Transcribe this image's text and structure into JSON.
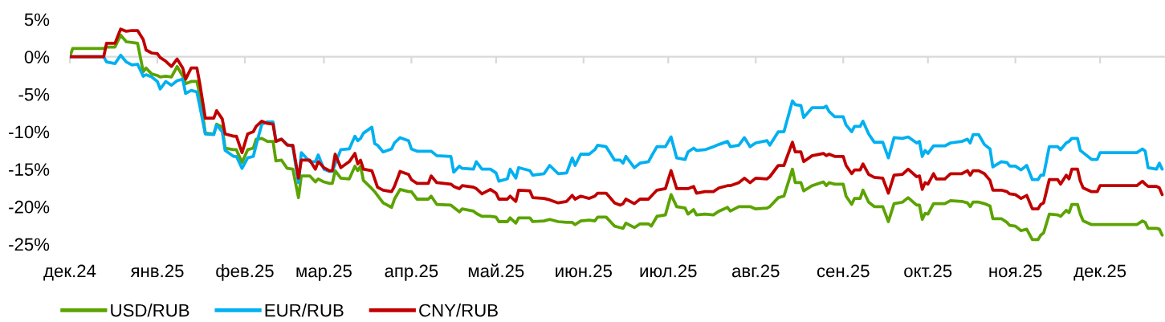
{
  "chart_data": {
    "type": "line",
    "x": [
      "2024-12-01",
      "2024-12-02",
      "2024-12-13",
      "2024-12-14",
      "2024-12-17",
      "2024-12-19",
      "2024-12-21",
      "2024-12-23",
      "2024-12-25",
      "2024-12-27",
      "2024-12-28",
      "2024-12-30",
      "2025-01-01",
      "2025-01-02",
      "2025-01-04",
      "2025-01-06",
      "2025-01-08",
      "2025-01-10",
      "2025-01-11",
      "2025-01-13",
      "2025-01-15",
      "2025-01-16",
      "2025-01-18",
      "2025-01-21",
      "2025-01-22",
      "2025-01-24",
      "2025-01-25",
      "2025-01-28",
      "2025-01-29",
      "2025-01-31",
      "2025-02-02",
      "2025-02-04",
      "2025-02-05",
      "2025-02-07",
      "2025-02-09",
      "2025-02-11",
      "2025-02-12",
      "2025-02-14",
      "2025-02-16",
      "2025-02-18",
      "2025-02-20",
      "2025-02-21",
      "2025-02-24",
      "2025-02-26",
      "2025-02-27",
      "2025-03-01",
      "2025-03-03",
      "2025-03-04",
      "2025-03-05",
      "2025-03-07",
      "2025-03-10",
      "2025-03-12",
      "2025-03-13",
      "2025-03-14",
      "2025-03-15",
      "2025-03-18",
      "2025-03-19",
      "2025-03-20",
      "2025-03-22",
      "2025-03-25",
      "2025-03-26",
      "2025-03-28",
      "2025-03-31",
      "2025-04-01",
      "2025-04-03",
      "2025-04-07",
      "2025-04-08",
      "2025-04-10",
      "2025-04-15",
      "2025-04-16",
      "2025-04-18",
      "2025-04-19",
      "2025-04-23",
      "2025-04-24",
      "2025-04-26",
      "2025-04-29",
      "2025-05-01",
      "2025-05-02",
      "2025-05-05",
      "2025-05-06",
      "2025-05-08",
      "2025-05-09",
      "2025-05-13",
      "2025-05-14",
      "2025-05-18",
      "2025-05-20",
      "2025-05-23",
      "2025-05-26",
      "2025-05-28",
      "2025-05-29",
      "2025-05-31",
      "2025-06-03",
      "2025-06-05",
      "2025-06-06",
      "2025-06-09",
      "2025-06-12",
      "2025-06-14",
      "2025-06-15",
      "2025-06-16",
      "2025-06-19",
      "2025-06-21",
      "2025-06-24",
      "2025-06-25",
      "2025-06-27",
      "2025-06-30",
      "2025-07-02",
      "2025-07-04",
      "2025-07-07",
      "2025-07-08",
      "2025-07-10",
      "2025-07-11",
      "2025-07-14",
      "2025-07-17",
      "2025-07-19",
      "2025-07-22",
      "2025-07-23",
      "2025-07-26",
      "2025-07-28",
      "2025-07-30",
      "2025-08-01",
      "2025-08-05",
      "2025-08-06",
      "2025-08-09",
      "2025-08-11",
      "2025-08-14",
      "2025-08-15",
      "2025-08-17",
      "2025-08-18",
      "2025-08-21",
      "2025-08-25",
      "2025-08-26",
      "2025-08-27",
      "2025-08-29",
      "2025-09-01",
      "2025-09-02",
      "2025-09-04",
      "2025-09-05",
      "2025-09-07",
      "2025-09-08",
      "2025-09-10",
      "2025-09-12",
      "2025-09-15",
      "2025-09-17",
      "2025-09-19",
      "2025-09-22",
      "2025-09-24",
      "2025-09-27",
      "2025-09-28",
      "2025-09-29",
      "2025-09-30",
      "2025-10-01",
      "2025-10-03",
      "2025-10-04",
      "2025-10-07",
      "2025-10-09",
      "2025-10-13",
      "2025-10-15",
      "2025-10-16",
      "2025-10-17",
      "2025-10-19",
      "2025-10-21",
      "2025-10-23",
      "2025-10-24",
      "2025-10-27",
      "2025-10-29",
      "2025-10-30",
      "2025-11-01",
      "2025-11-03",
      "2025-11-05",
      "2025-11-07",
      "2025-11-09",
      "2025-11-10",
      "2025-11-11",
      "2025-11-13",
      "2025-11-16",
      "2025-11-17",
      "2025-11-19",
      "2025-11-20",
      "2025-11-21",
      "2025-11-23",
      "2025-11-24",
      "2025-11-25",
      "2025-11-28",
      "2025-11-30",
      "2025-12-01",
      "2025-12-14",
      "2025-12-16",
      "2025-12-17",
      "2025-12-18",
      "2025-12-21",
      "2025-12-22",
      "2025-12-23"
    ],
    "series": [
      {
        "name": "USD/RUB",
        "color": "#5ba300",
        "values": [
          0,
          1.1,
          1.1,
          1.3,
          1.3,
          2.9,
          2.0,
          1.9,
          1.8,
          -2.0,
          -1.5,
          -2.3,
          -2.5,
          -2.7,
          -2.6,
          -2.7,
          -1.3,
          -2.6,
          -3.6,
          -3.3,
          -3.3,
          -5.0,
          -10.2,
          -10.3,
          -9.0,
          -9.4,
          -12.2,
          -12.4,
          -12.4,
          -14.1,
          -12.4,
          -12.2,
          -11.0,
          -10.9,
          -11.3,
          -11.3,
          -13.9,
          -13.8,
          -14.9,
          -15.0,
          -18.8,
          -15.9,
          -15.9,
          -16.7,
          -16.3,
          -16.7,
          -16.9,
          -16.9,
          -15.2,
          -16.2,
          -16.3,
          -14.6,
          -15.2,
          -14.6,
          -16.5,
          -17.6,
          -18.0,
          -18.5,
          -19.5,
          -20.1,
          -19.0,
          -17.7,
          -18.0,
          -18.0,
          -19.0,
          -19.0,
          -18.6,
          -19.7,
          -19.8,
          -20.1,
          -20.7,
          -20.3,
          -20.6,
          -20.9,
          -21.3,
          -21.3,
          -21.4,
          -22.0,
          -22.0,
          -21.5,
          -22.2,
          -21.5,
          -21.5,
          -22.0,
          -21.9,
          -21.7,
          -22.0,
          -22.1,
          -22.1,
          -22.4,
          -21.9,
          -21.8,
          -21.9,
          -21.4,
          -21.4,
          -22.6,
          -22.8,
          -22.9,
          -22.2,
          -22.8,
          -22.3,
          -22.3,
          -22.6,
          -21.3,
          -21.1,
          -18.4,
          -20.0,
          -20.2,
          -21.0,
          -20.4,
          -21.1,
          -21.0,
          -21.1,
          -20.6,
          -20.1,
          -20.6,
          -20.0,
          -20.0,
          -20.0,
          -20.3,
          -20.2,
          -20.0,
          -18.8,
          -18.6,
          -15.0,
          -16.8,
          -16.8,
          -17.9,
          -17.2,
          -16.7,
          -17.2,
          -16.8,
          -17.0,
          -17.0,
          -18.6,
          -19.7,
          -18.9,
          -18.9,
          -17.8,
          -19.4,
          -20.0,
          -20.0,
          -22.0,
          -19.6,
          -19.4,
          -18.8,
          -19.8,
          -19.8,
          -21.7,
          -20.9,
          -21.0,
          -19.6,
          -19.6,
          -19.6,
          -19.2,
          -19.3,
          -19.5,
          -20.0,
          -19.4,
          -19.4,
          -19.6,
          -19.9,
          -21.6,
          -21.6,
          -22.1,
          -22.5,
          -22.6,
          -23.2,
          -23.0,
          -24.4,
          -24.4,
          -23.8,
          -23.5,
          -21.0,
          -21.1,
          -21.3,
          -20.5,
          -20.8,
          -19.7,
          -19.7,
          -21.0,
          -21.9,
          -22.4,
          -22.4,
          -22.4,
          -22.4,
          -21.9,
          -22.1,
          -22.9,
          -22.9,
          -23.0,
          -23.8
        ]
      },
      {
        "name": "EUR/RUB",
        "color": "#00b0f0",
        "values": [
          0,
          0,
          0,
          -0.7,
          -0.9,
          0.2,
          -0.7,
          -1.1,
          -1.0,
          -2.6,
          -2.4,
          -2.7,
          -3.3,
          -4.3,
          -3.3,
          -3.8,
          -3.2,
          -3.0,
          -4.9,
          -4.5,
          -4.7,
          -6.5,
          -10.3,
          -10.4,
          -9.1,
          -10.0,
          -12.5,
          -13.3,
          -13.3,
          -14.9,
          -13.5,
          -13.3,
          -11.8,
          -9.0,
          -8.7,
          -8.7,
          -11.2,
          -11.0,
          -11.7,
          -12.0,
          -16.8,
          -12.8,
          -14.0,
          -14.0,
          -13.1,
          -15.0,
          -15.3,
          -15.3,
          -14.3,
          -12.4,
          -12.3,
          -10.6,
          -11.2,
          -10.9,
          -10.2,
          -9.4,
          -11.6,
          -11.8,
          -12.7,
          -12.3,
          -11.5,
          -10.8,
          -11.2,
          -12.3,
          -12.6,
          -12.6,
          -12.6,
          -13.2,
          -13.3,
          -15.4,
          -14.6,
          -14.9,
          -15.0,
          -14.0,
          -15.0,
          -15.0,
          -15.5,
          -16.6,
          -16.3,
          -15.0,
          -16.2,
          -14.8,
          -15.2,
          -15.8,
          -15.6,
          -14.5,
          -15.6,
          -15.5,
          -13.5,
          -14.5,
          -13.0,
          -13.0,
          -12.4,
          -11.8,
          -12.0,
          -13.8,
          -13.8,
          -14.2,
          -13.3,
          -14.8,
          -14.2,
          -14.0,
          -13.3,
          -12.0,
          -12.0,
          -10.7,
          -13.5,
          -13.7,
          -12.7,
          -12.2,
          -12.5,
          -12.4,
          -12.0,
          -11.7,
          -11.3,
          -12.0,
          -11.8,
          -10.8,
          -12.0,
          -11.5,
          -11.2,
          -11.8,
          -10.0,
          -10.0,
          -5.9,
          -6.4,
          -6.5,
          -8.1,
          -6.8,
          -6.8,
          -6.6,
          -7.3,
          -8.0,
          -8.0,
          -9.1,
          -10.0,
          -9.3,
          -9.3,
          -8.6,
          -10.3,
          -11.4,
          -11.4,
          -13.5,
          -10.8,
          -10.9,
          -10.7,
          -11.5,
          -11.3,
          -13.3,
          -12.5,
          -12.9,
          -11.9,
          -11.9,
          -11.9,
          -11.5,
          -11.3,
          -11.0,
          -11.5,
          -10.4,
          -10.4,
          -11.7,
          -12.3,
          -14.7,
          -14.0,
          -14.1,
          -14.6,
          -14.6,
          -15.1,
          -14.5,
          -16.4,
          -16.4,
          -15.8,
          -15.8,
          -12.0,
          -12.0,
          -12.4,
          -11.5,
          -11.3,
          -10.9,
          -10.9,
          -12.5,
          -12.8,
          -13.7,
          -13.7,
          -12.8,
          -12.8,
          -12.3,
          -12.6,
          -14.8,
          -15.0,
          -14.2,
          -15.0
        ]
      },
      {
        "name": "CNY/RUB",
        "color": "#c00000",
        "values": [
          0,
          0,
          0,
          1.8,
          1.8,
          3.7,
          3.4,
          3.5,
          3.5,
          2.3,
          0.9,
          0.5,
          0.4,
          -0.1,
          -0.6,
          -1.3,
          -0.3,
          -1.5,
          -3.0,
          -1.5,
          -1.5,
          -3.5,
          -8.2,
          -8.2,
          -7.2,
          -8.3,
          -10.3,
          -10.6,
          -10.6,
          -12.8,
          -10.3,
          -10.0,
          -9.3,
          -8.6,
          -8.9,
          -9.0,
          -11.3,
          -11.0,
          -11.8,
          -11.8,
          -16.2,
          -13.8,
          -13.8,
          -15.0,
          -14.0,
          -14.8,
          -15.2,
          -15.2,
          -13.0,
          -14.8,
          -14.0,
          -12.9,
          -14.3,
          -13.8,
          -15.0,
          -15.2,
          -16.3,
          -17.4,
          -17.8,
          -18.0,
          -17.3,
          -15.3,
          -15.7,
          -16.4,
          -16.9,
          -16.9,
          -15.9,
          -16.8,
          -17.0,
          -17.3,
          -17.6,
          -17.2,
          -17.4,
          -17.6,
          -18.3,
          -17.7,
          -18.2,
          -19.0,
          -19.0,
          -18.6,
          -19.3,
          -17.8,
          -17.9,
          -18.8,
          -18.9,
          -19.1,
          -19.5,
          -19.3,
          -18.5,
          -19.0,
          -18.6,
          -18.9,
          -18.6,
          -18.2,
          -18.2,
          -19.5,
          -19.8,
          -19.6,
          -19.0,
          -19.6,
          -19.0,
          -19.0,
          -18.6,
          -17.8,
          -17.6,
          -15.2,
          -17.6,
          -17.6,
          -17.6,
          -17.3,
          -18.2,
          -18.0,
          -18.0,
          -17.5,
          -17.2,
          -17.2,
          -16.8,
          -16.2,
          -16.8,
          -16.2,
          -16.3,
          -16.0,
          -14.5,
          -14.5,
          -11.4,
          -12.7,
          -12.7,
          -14.0,
          -13.2,
          -12.9,
          -13.2,
          -13.0,
          -13.3,
          -13.3,
          -14.5,
          -15.6,
          -15.1,
          -15.1,
          -14.3,
          -15.7,
          -16.1,
          -16.2,
          -18.2,
          -15.8,
          -15.7,
          -15.0,
          -16.0,
          -15.9,
          -17.7,
          -16.8,
          -17.0,
          -15.6,
          -16.3,
          -16.3,
          -15.6,
          -15.6,
          -15.2,
          -15.8,
          -15.2,
          -15.2,
          -15.6,
          -16.5,
          -17.8,
          -17.8,
          -18.0,
          -18.3,
          -18.4,
          -18.9,
          -18.5,
          -20.3,
          -20.3,
          -19.7,
          -19.5,
          -16.4,
          -16.4,
          -17.0,
          -15.8,
          -16.3,
          -15.0,
          -15.0,
          -16.6,
          -17.5,
          -18.0,
          -18.0,
          -17.2,
          -17.2,
          -16.6,
          -17.0,
          -17.3,
          -17.3,
          -17.5,
          -18.4
        ]
      }
    ],
    "xlim": [
      "2024-12-01",
      "2025-12-24"
    ],
    "xticks": [
      {
        "value": "2024-12-01",
        "label": "дек.24"
      },
      {
        "value": "2025-01-01",
        "label": "янв.25"
      },
      {
        "value": "2025-02-01",
        "label": "фев.25"
      },
      {
        "value": "2025-03-01",
        "label": "мар.25"
      },
      {
        "value": "2025-04-01",
        "label": "апр.25"
      },
      {
        "value": "2025-05-01",
        "label": "май.25"
      },
      {
        "value": "2025-06-01",
        "label": "июн.25"
      },
      {
        "value": "2025-07-01",
        "label": "июл.25"
      },
      {
        "value": "2025-08-01",
        "label": "авг.25"
      },
      {
        "value": "2025-09-01",
        "label": "сен.25"
      },
      {
        "value": "2025-10-01",
        "label": "окт.25"
      },
      {
        "value": "2025-11-01",
        "label": "ноя.25"
      },
      {
        "value": "2025-12-01",
        "label": "дек.25"
      }
    ],
    "ylim": [
      -25,
      5
    ],
    "yticks": [
      {
        "value": 5,
        "label": "5%"
      },
      {
        "value": 0,
        "label": "0%"
      },
      {
        "value": -5,
        "label": "-5%"
      },
      {
        "value": -10,
        "label": "-10%"
      },
      {
        "value": -15,
        "label": "-15%"
      },
      {
        "value": -20,
        "label": "-20%"
      },
      {
        "value": -25,
        "label": "-25%"
      }
    ],
    "legend": "bottom left"
  }
}
